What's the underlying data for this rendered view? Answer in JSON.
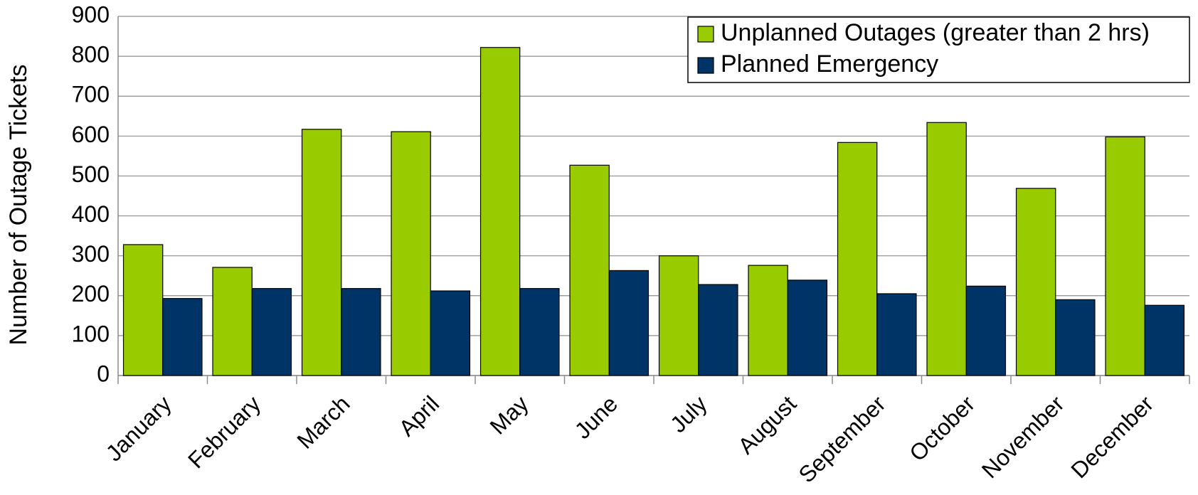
{
  "chart_data": {
    "type": "bar",
    "y_label": "Number of Outage Tickets",
    "categories": [
      "January",
      "February",
      "March",
      "April",
      "May",
      "June",
      "July",
      "August",
      "September",
      "October",
      "November",
      "December"
    ],
    "series": [
      {
        "name": "Unplanned Outages (greater than 2 hrs)",
        "color": "#99cc00",
        "values": [
          328,
          271,
          617,
          611,
          822,
          527,
          300,
          276,
          584,
          634,
          469,
          598
        ]
      },
      {
        "name": "Planned Emergency",
        "color": "#003366",
        "values": [
          193,
          218,
          218,
          212,
          218,
          263,
          228,
          239,
          205,
          224,
          190,
          176
        ]
      }
    ],
    "ylim": [
      0,
      900
    ],
    "yticks": [
      0,
      100,
      200,
      300,
      400,
      500,
      600,
      700,
      800,
      900
    ],
    "grid": true,
    "legend": "top-right"
  }
}
